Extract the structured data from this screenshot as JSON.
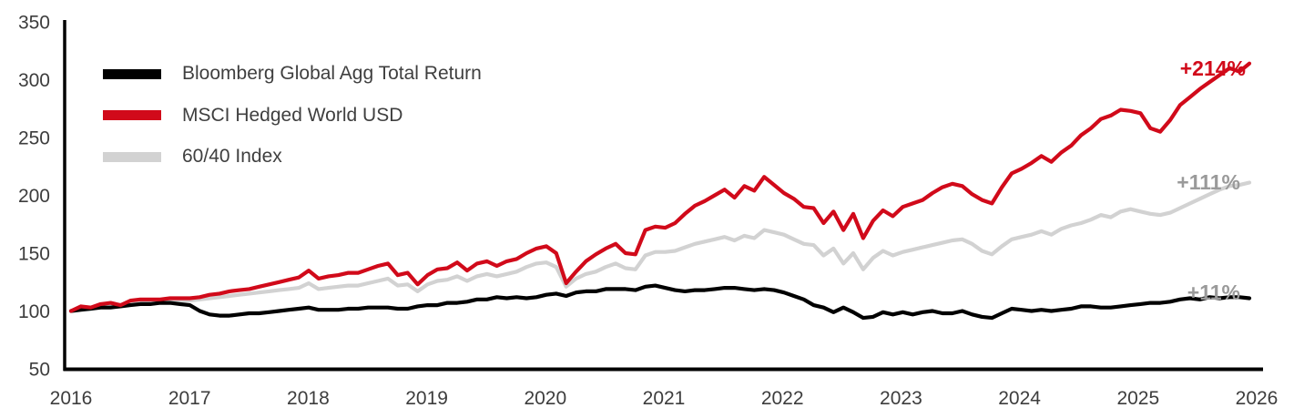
{
  "chart_data": {
    "type": "line",
    "title": "",
    "grid": false,
    "legend_position": "top-left",
    "x_axis": {
      "ticks": [
        "2016",
        "2017",
        "2018",
        "2019",
        "2020",
        "2021",
        "2022",
        "2023",
        "2024",
        "2025",
        "2026"
      ]
    },
    "y_axis": {
      "ticks": [
        "350",
        "300",
        "250",
        "200",
        "150",
        "100",
        "50"
      ],
      "min": 50,
      "max": 350
    },
    "frequency": "monthly",
    "x_range": [
      "2016",
      "2026"
    ],
    "series": [
      {
        "name": "Bloomberg Global Agg Total Return",
        "color": "#000000",
        "end_label": "+11%",
        "end_label_color": "#9a9a9a",
        "values": [
          100,
          101,
          102,
          103,
          103,
          104,
          105,
          106,
          106,
          107,
          107,
          106,
          105,
          100,
          97,
          96,
          96,
          97,
          98,
          98,
          99,
          100,
          101,
          102,
          103,
          101,
          101,
          101,
          102,
          102,
          103,
          103,
          103,
          102,
          102,
          104,
          105,
          105,
          107,
          107,
          108,
          110,
          110,
          112,
          111,
          112,
          111,
          112,
          114,
          115,
          113,
          116,
          117,
          117,
          119,
          119,
          119,
          118,
          121,
          122,
          120,
          118,
          117,
          118,
          118,
          119,
          120,
          120,
          119,
          118,
          119,
          118,
          116,
          113,
          110,
          105,
          103,
          99,
          103,
          99,
          94,
          95,
          99,
          97,
          99,
          97,
          99,
          100,
          98,
          98,
          100,
          97,
          95,
          94,
          98,
          102,
          101,
          100,
          101,
          100,
          101,
          102,
          104,
          104,
          103,
          103,
          104,
          105,
          106,
          107,
          107,
          108,
          110,
          111,
          110,
          112,
          111,
          112,
          112,
          111
        ]
      },
      {
        "name": "MSCI Hedged World USD",
        "color": "#d10a1a",
        "end_label": "+214%",
        "end_label_color": "#d10a1a",
        "values": [
          100,
          104,
          103,
          106,
          107,
          105,
          109,
          110,
          110,
          110,
          111,
          111,
          111,
          112,
          114,
          115,
          117,
          118,
          119,
          121,
          123,
          125,
          127,
          129,
          135,
          128,
          130,
          131,
          133,
          133,
          136,
          139,
          141,
          131,
          133,
          123,
          131,
          136,
          137,
          142,
          135,
          141,
          143,
          139,
          143,
          145,
          150,
          154,
          156,
          150,
          124,
          134,
          143,
          149,
          154,
          158,
          150,
          149,
          170,
          173,
          172,
          176,
          184,
          191,
          195,
          200,
          205,
          198,
          208,
          204,
          216,
          209,
          202,
          197,
          190,
          189,
          176,
          186,
          170,
          184,
          163,
          178,
          187,
          182,
          190,
          193,
          196,
          202,
          207,
          210,
          208,
          201,
          196,
          193,
          207,
          219,
          223,
          228,
          234,
          229,
          237,
          243,
          252,
          258,
          266,
          269,
          274,
          273,
          271,
          258,
          255,
          265,
          278,
          285,
          292,
          298,
          304,
          310,
          307,
          314
        ]
      },
      {
        "name": "60/40 Index",
        "color": "#d2d2d2",
        "end_label": "+111%",
        "end_label_color": "#9a9a9a",
        "values": [
          100,
          102,
          102,
          104,
          105,
          104,
          107,
          108,
          108,
          108,
          109,
          109,
          109,
          110,
          111,
          112,
          113,
          114,
          115,
          116,
          117,
          118,
          119,
          120,
          124,
          119,
          120,
          121,
          122,
          122,
          124,
          126,
          128,
          122,
          123,
          117,
          123,
          126,
          127,
          130,
          126,
          130,
          132,
          130,
          132,
          134,
          138,
          141,
          142,
          138,
          121,
          128,
          132,
          134,
          138,
          141,
          137,
          136,
          148,
          151,
          151,
          152,
          155,
          158,
          160,
          162,
          164,
          161,
          165,
          163,
          170,
          168,
          166,
          162,
          158,
          157,
          148,
          154,
          141,
          150,
          136,
          146,
          152,
          148,
          151,
          153,
          155,
          157,
          159,
          161,
          162,
          158,
          152,
          149,
          156,
          162,
          164,
          166,
          169,
          166,
          171,
          174,
          176,
          179,
          183,
          181,
          186,
          188,
          186,
          184,
          183,
          185,
          189,
          193,
          197,
          201,
          205,
          208,
          209,
          211
        ]
      }
    ]
  },
  "legend": {
    "items": [
      {
        "label": "Bloomberg Global Agg Total Return",
        "color": "#000000"
      },
      {
        "label": "MSCI Hedged World USD",
        "color": "#d10a1a"
      },
      {
        "label": "60/40 Index",
        "color": "#d2d2d2"
      }
    ]
  }
}
